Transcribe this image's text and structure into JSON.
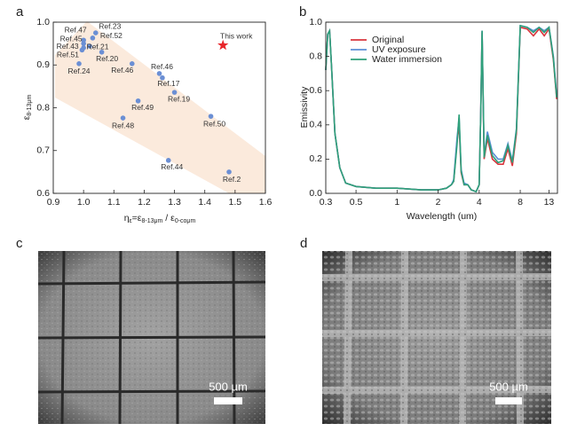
{
  "panel_labels": [
    "a",
    "b",
    "c",
    "d"
  ],
  "chart_data": [
    {
      "type": "scatter",
      "xlabel": [
        {
          "text": "η"
        },
        {
          "sub": "ε"
        },
        {
          "text": "=ε"
        },
        {
          "sub": "8-13μm"
        },
        {
          "text": " / ε"
        },
        {
          "sub": "0-coμm"
        }
      ],
      "ylabel": [
        {
          "text": "ε"
        },
        {
          "sub": "8-13μm"
        }
      ],
      "xlim": [
        0.9,
        1.6
      ],
      "xticks": [
        0.9,
        {
          "value": 1,
          "label": "1.0"
        },
        1.1,
        1.2,
        1.3,
        1.4,
        1.5,
        1.6
      ],
      "ylim": [
        0.6,
        1.0
      ],
      "yticks": [
        0.6,
        0.7,
        0.8,
        0.9,
        {
          "value": 1,
          "label": "1.0"
        }
      ],
      "series": [
        {
          "color": "#6b8fd4",
          "marker": "circle",
          "x": [
            1.04,
            1.03,
            1.0,
            1.0,
            1.0,
            1.02,
            0.995,
            1.06,
            0.985,
            1.16,
            1.25,
            1.26,
            1.3,
            1.18,
            1.13,
            1.42,
            1.28,
            1.48
          ],
          "values": [
            0.975,
            0.963,
            0.958,
            0.95,
            0.94,
            0.944,
            0.935,
            0.93,
            0.903,
            0.903,
            0.88,
            0.87,
            0.836,
            0.816,
            0.776,
            0.78,
            0.677,
            0.65
          ],
          "point_labels": [
            "Ref.23",
            "Ref.52",
            "Ref.47",
            "Ref.45",
            "Ref.43",
            "Ref.21",
            "Ref.51",
            "Ref.20",
            "Ref.24",
            "Ref.46",
            "Ref.46",
            "Ref.17",
            "Ref.19",
            "Ref.49",
            "Ref.48",
            "Ref.50",
            "Ref.44",
            "Ref.2"
          ]
        },
        {
          "color": "#e8262b",
          "marker": "star",
          "x": [
            1.46
          ],
          "values": [
            0.946
          ],
          "point_labels": [
            "This work"
          ]
        }
      ]
    },
    {
      "type": "line",
      "xscale": "log",
      "xlabel": "Wavelength (um)",
      "ylabel": "Emissivity",
      "legend": "upper left",
      "xlim": [
        0.3,
        15
      ],
      "xticks": [
        0.3,
        0.5,
        1,
        2,
        4,
        8,
        13
      ],
      "ylim": [
        0,
        1
      ],
      "yticks": [
        {
          "value": 0,
          "label": "0.0"
        },
        0.2,
        0.4,
        0.6,
        0.8,
        {
          "value": 1,
          "label": "1.0"
        }
      ],
      "x": [
        0.3,
        0.31,
        0.32,
        0.33,
        0.35,
        0.38,
        0.42,
        0.5,
        0.7,
        1,
        1.5,
        2,
        2.3,
        2.5,
        2.6,
        2.75,
        2.85,
        2.95,
        3.1,
        3.3,
        3.5,
        3.8,
        4.0,
        4.1,
        4.2,
        4.35,
        4.6,
        5.0,
        5.5,
        6.0,
        6.5,
        7.0,
        7.5,
        8.0,
        9.0,
        10,
        11,
        12,
        13,
        14,
        14.8
      ],
      "series": [
        {
          "name": "Original",
          "color": "#d9363e",
          "values": [
            0.72,
            0.93,
            0.95,
            0.75,
            0.35,
            0.15,
            0.06,
            0.04,
            0.03,
            0.03,
            0.02,
            0.02,
            0.03,
            0.05,
            0.07,
            0.3,
            0.4,
            0.12,
            0.05,
            0.05,
            0.02,
            0.01,
            0.05,
            0.45,
            0.94,
            0.2,
            0.32,
            0.2,
            0.17,
            0.17,
            0.26,
            0.16,
            0.35,
            0.97,
            0.96,
            0.92,
            0.96,
            0.92,
            0.96,
            0.78,
            0.55
          ]
        },
        {
          "name": "UV exposure",
          "color": "#5b8fd6",
          "values": [
            0.72,
            0.93,
            0.95,
            0.75,
            0.35,
            0.15,
            0.06,
            0.04,
            0.03,
            0.03,
            0.02,
            0.02,
            0.03,
            0.05,
            0.08,
            0.32,
            0.44,
            0.14,
            0.06,
            0.05,
            0.02,
            0.01,
            0.05,
            0.45,
            0.95,
            0.22,
            0.36,
            0.24,
            0.2,
            0.2,
            0.29,
            0.19,
            0.38,
            0.98,
            0.97,
            0.95,
            0.97,
            0.95,
            0.97,
            0.8,
            0.57
          ]
        },
        {
          "name": "Water immersion",
          "color": "#2ea07a",
          "values": [
            0.72,
            0.93,
            0.95,
            0.75,
            0.35,
            0.15,
            0.06,
            0.04,
            0.03,
            0.03,
            0.02,
            0.02,
            0.03,
            0.05,
            0.07,
            0.28,
            0.46,
            0.13,
            0.05,
            0.05,
            0.02,
            0.01,
            0.05,
            0.45,
            0.95,
            0.21,
            0.34,
            0.22,
            0.18,
            0.19,
            0.28,
            0.18,
            0.37,
            0.98,
            0.97,
            0.94,
            0.97,
            0.94,
            0.97,
            0.79,
            0.56
          ]
        }
      ]
    }
  ],
  "images": [
    {
      "scale_bar": "500 µm"
    },
    {
      "scale_bar": "500 µm"
    }
  ]
}
